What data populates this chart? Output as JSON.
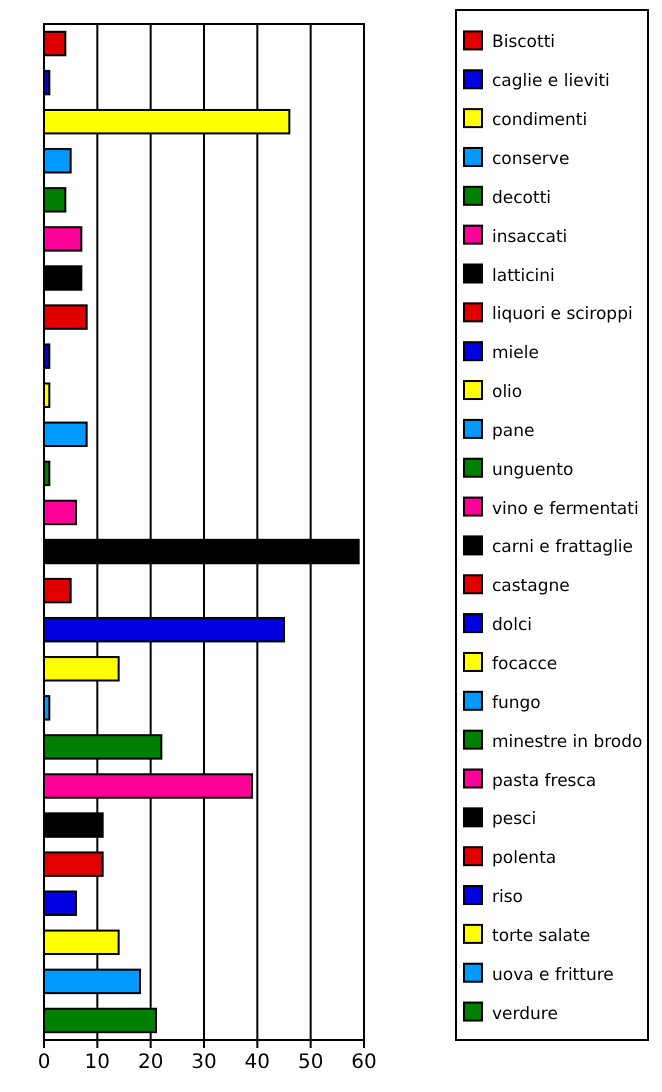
{
  "chart_data": {
    "type": "bar",
    "orientation": "horizontal",
    "stacked": true,
    "categories": [
      null,
      null,
      null,
      null,
      null,
      null,
      null,
      null,
      null,
      null,
      null,
      null,
      null,
      null,
      null,
      null,
      null,
      null,
      null,
      null,
      null,
      null,
      null,
      null,
      null,
      null
    ],
    "series": [
      {
        "name": "Biscotti",
        "color": "#e00000",
        "values": [
          4,
          null,
          null,
          null,
          null,
          null,
          null,
          null,
          null,
          null,
          null,
          null,
          null,
          null,
          null,
          null,
          null,
          null,
          null,
          null,
          null,
          null,
          null,
          null,
          null,
          null
        ]
      },
      {
        "name": "caglie e lieviti",
        "color": "#0000e0",
        "values": [
          null,
          1,
          null,
          null,
          null,
          null,
          null,
          null,
          null,
          null,
          null,
          null,
          null,
          null,
          null,
          null,
          null,
          null,
          null,
          null,
          null,
          null,
          null,
          null,
          null,
          null
        ]
      },
      {
        "name": "condimenti",
        "color": "#ffff00",
        "values": [
          null,
          null,
          46,
          null,
          null,
          null,
          null,
          null,
          null,
          null,
          null,
          null,
          null,
          null,
          null,
          null,
          null,
          null,
          null,
          null,
          null,
          null,
          null,
          null,
          null,
          null
        ]
      },
      {
        "name": "conserve",
        "color": "#0099ff",
        "values": [
          null,
          null,
          null,
          5,
          null,
          null,
          null,
          null,
          null,
          null,
          null,
          null,
          null,
          null,
          null,
          null,
          null,
          null,
          null,
          null,
          null,
          null,
          null,
          null,
          null,
          null
        ]
      },
      {
        "name": "decotti",
        "color": "#008000",
        "values": [
          null,
          null,
          null,
          null,
          4,
          null,
          null,
          null,
          null,
          null,
          null,
          null,
          null,
          null,
          null,
          null,
          null,
          null,
          null,
          null,
          null,
          null,
          null,
          null,
          null,
          null
        ]
      },
      {
        "name": "insaccati",
        "color": "#ff0099",
        "values": [
          null,
          null,
          null,
          null,
          null,
          7,
          null,
          null,
          null,
          null,
          null,
          null,
          null,
          null,
          null,
          null,
          null,
          null,
          null,
          null,
          null,
          null,
          null,
          null,
          null,
          null
        ]
      },
      {
        "name": "latticini",
        "color": "#000000",
        "values": [
          null,
          null,
          null,
          null,
          null,
          null,
          7,
          null,
          null,
          null,
          null,
          null,
          null,
          null,
          null,
          null,
          null,
          null,
          null,
          null,
          null,
          null,
          null,
          null,
          null,
          null
        ]
      },
      {
        "name": "liquori e sciroppi",
        "color": "#e00000",
        "values": [
          null,
          null,
          null,
          null,
          null,
          null,
          null,
          8,
          null,
          null,
          null,
          null,
          null,
          null,
          null,
          null,
          null,
          null,
          null,
          null,
          null,
          null,
          null,
          null,
          null,
          null
        ]
      },
      {
        "name": "miele",
        "color": "#0000e0",
        "values": [
          null,
          null,
          null,
          null,
          null,
          null,
          null,
          null,
          1,
          null,
          null,
          null,
          null,
          null,
          null,
          null,
          null,
          null,
          null,
          null,
          null,
          null,
          null,
          null,
          null,
          null
        ]
      },
      {
        "name": "olio",
        "color": "#ffff00",
        "values": [
          null,
          null,
          null,
          null,
          null,
          null,
          null,
          null,
          null,
          1,
          null,
          null,
          null,
          null,
          null,
          null,
          null,
          null,
          null,
          null,
          null,
          null,
          null,
          null,
          null,
          null
        ]
      },
      {
        "name": "pane",
        "color": "#0099ff",
        "values": [
          null,
          null,
          null,
          null,
          null,
          null,
          null,
          null,
          null,
          null,
          8,
          null,
          null,
          null,
          null,
          null,
          null,
          null,
          null,
          null,
          null,
          null,
          null,
          null,
          null,
          null
        ]
      },
      {
        "name": "unguento",
        "color": "#008000",
        "values": [
          null,
          null,
          null,
          null,
          null,
          null,
          null,
          null,
          null,
          null,
          null,
          1,
          null,
          null,
          null,
          null,
          null,
          null,
          null,
          null,
          null,
          null,
          null,
          null,
          null,
          null
        ]
      },
      {
        "name": "vino e fermentati",
        "color": "#ff0099",
        "values": [
          null,
          null,
          null,
          null,
          null,
          null,
          null,
          null,
          null,
          null,
          null,
          null,
          6,
          null,
          null,
          null,
          null,
          null,
          null,
          null,
          null,
          null,
          null,
          null,
          null,
          null
        ]
      },
      {
        "name": "carni e frattaglie",
        "color": "#000000",
        "values": [
          null,
          null,
          null,
          null,
          null,
          null,
          null,
          null,
          null,
          null,
          null,
          null,
          null,
          59,
          null,
          null,
          null,
          null,
          null,
          null,
          null,
          null,
          null,
          null,
          null,
          null
        ]
      },
      {
        "name": "castagne",
        "color": "#e00000",
        "values": [
          null,
          null,
          null,
          null,
          null,
          null,
          null,
          null,
          null,
          null,
          null,
          null,
          null,
          null,
          5,
          null,
          null,
          null,
          null,
          null,
          null,
          null,
          null,
          null,
          null,
          null
        ]
      },
      {
        "name": "dolci",
        "color": "#0000e0",
        "values": [
          null,
          null,
          null,
          null,
          null,
          null,
          null,
          null,
          null,
          null,
          null,
          null,
          null,
          null,
          null,
          45,
          null,
          null,
          null,
          null,
          null,
          null,
          null,
          null,
          null,
          null
        ]
      },
      {
        "name": "focacce",
        "color": "#ffff00",
        "values": [
          null,
          null,
          null,
          null,
          null,
          null,
          null,
          null,
          null,
          null,
          null,
          null,
          null,
          null,
          null,
          null,
          14,
          null,
          null,
          null,
          null,
          null,
          null,
          null,
          null,
          null
        ]
      },
      {
        "name": "fungo",
        "color": "#0099ff",
        "values": [
          null,
          null,
          null,
          null,
          null,
          null,
          null,
          null,
          null,
          null,
          null,
          null,
          null,
          null,
          null,
          null,
          null,
          1,
          null,
          null,
          null,
          null,
          null,
          null,
          null,
          null
        ]
      },
      {
        "name": "minestre in brodo",
        "color": "#008000",
        "values": [
          null,
          null,
          null,
          null,
          null,
          null,
          null,
          null,
          null,
          null,
          null,
          null,
          null,
          null,
          null,
          null,
          null,
          null,
          22,
          null,
          null,
          null,
          null,
          null,
          null,
          null
        ]
      },
      {
        "name": "pasta fresca",
        "color": "#ff0099",
        "values": [
          null,
          null,
          null,
          null,
          null,
          null,
          null,
          null,
          null,
          null,
          null,
          null,
          null,
          null,
          null,
          null,
          null,
          null,
          null,
          39,
          null,
          null,
          null,
          null,
          null,
          null
        ]
      },
      {
        "name": "pesci",
        "color": "#000000",
        "values": [
          null,
          null,
          null,
          null,
          null,
          null,
          null,
          null,
          null,
          null,
          null,
          null,
          null,
          null,
          null,
          null,
          null,
          null,
          null,
          null,
          11,
          null,
          null,
          null,
          null,
          null
        ]
      },
      {
        "name": "polenta",
        "color": "#e00000",
        "values": [
          null,
          null,
          null,
          null,
          null,
          null,
          null,
          null,
          null,
          null,
          null,
          null,
          null,
          null,
          null,
          null,
          null,
          null,
          null,
          null,
          null,
          11,
          null,
          null,
          null,
          null
        ]
      },
      {
        "name": "riso",
        "color": "#0000e0",
        "values": [
          null,
          null,
          null,
          null,
          null,
          null,
          null,
          null,
          null,
          null,
          null,
          null,
          null,
          null,
          null,
          null,
          null,
          null,
          null,
          null,
          null,
          null,
          6,
          null,
          null,
          null
        ]
      },
      {
        "name": "torte salate",
        "color": "#ffff00",
        "values": [
          null,
          null,
          null,
          null,
          null,
          null,
          null,
          null,
          null,
          null,
          null,
          null,
          null,
          null,
          null,
          null,
          null,
          null,
          null,
          null,
          null,
          null,
          null,
          14,
          null,
          null
        ]
      },
      {
        "name": "uova e fritture",
        "color": "#0099ff",
        "values": [
          null,
          null,
          null,
          null,
          null,
          null,
          null,
          null,
          null,
          null,
          null,
          null,
          null,
          null,
          null,
          null,
          null,
          null,
          null,
          null,
          null,
          null,
          null,
          null,
          18,
          null
        ]
      },
      {
        "name": "verdure",
        "color": "#008000",
        "values": [
          null,
          null,
          null,
          null,
          null,
          null,
          null,
          null,
          null,
          null,
          null,
          null,
          null,
          null,
          null,
          null,
          null,
          null,
          null,
          null,
          null,
          null,
          null,
          null,
          null,
          21
        ]
      }
    ],
    "xlim": [
      0,
      60
    ],
    "xticks": [
      0,
      10,
      20,
      30,
      40,
      50,
      60
    ],
    "grid": "x",
    "legend": "right",
    "tick_labels": "x"
  }
}
